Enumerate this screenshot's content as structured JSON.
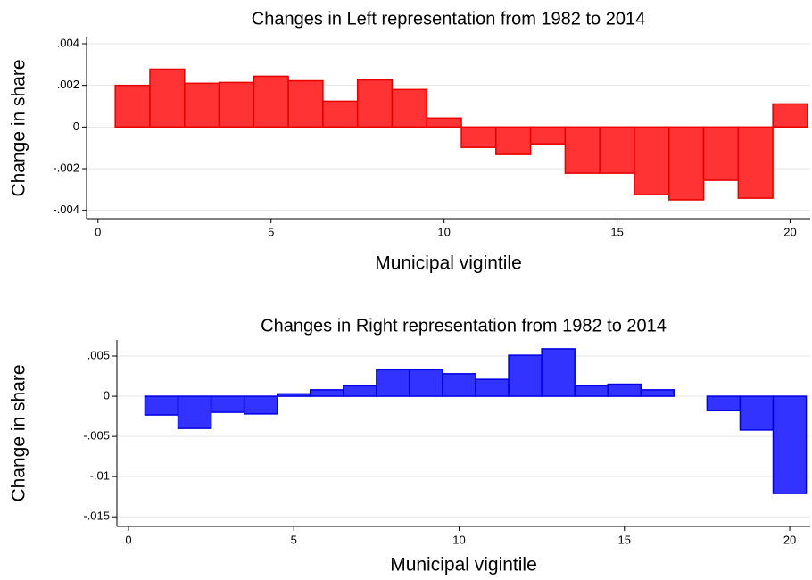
{
  "chart_data": [
    {
      "type": "bar",
      "title": "Changes in Left representation from 1982 to 2014",
      "x_label": "Municipal vigintile",
      "y_label": "Change in share",
      "x": [
        1,
        2,
        3,
        4,
        5,
        6,
        7,
        8,
        9,
        10,
        11,
        12,
        13,
        14,
        15,
        16,
        17,
        18,
        19,
        20
      ],
      "values": [
        0.002,
        0.00278,
        0.0021,
        0.00214,
        0.00244,
        0.00222,
        0.00124,
        0.00226,
        0.0018,
        0.00043,
        -0.00098,
        -0.00132,
        -0.00081,
        -0.00222,
        -0.00222,
        -0.00325,
        -0.0035,
        -0.00256,
        -0.00342,
        0.00111
      ],
      "color": "#ff3333",
      "edge_color": "#e60000",
      "xlim": [
        -0.33,
        20.58
      ],
      "xticks": [
        0,
        5,
        10,
        15,
        20
      ],
      "ylim": [
        -0.0044,
        0.0043
      ],
      "yticks": [
        {
          "value": 0.004,
          "label": ".004"
        },
        {
          "value": 0.002,
          "label": ".002"
        },
        0,
        {
          "value": -0.002,
          "label": "-.002"
        },
        {
          "value": -0.004,
          "label": "-.004"
        }
      ],
      "grid": true
    },
    {
      "type": "bar",
      "title": "Changes in Right representation from 1982 to 2014",
      "x_label": "Municipal vigintile",
      "y_label": "Change in share",
      "x": [
        1,
        2,
        3,
        4,
        5,
        6,
        7,
        8,
        9,
        10,
        11,
        12,
        13,
        14,
        15,
        16,
        17,
        18,
        19,
        20
      ],
      "values": [
        -0.00233,
        -0.004,
        -0.002,
        -0.0022,
        0.0003,
        0.0008,
        0.0013,
        0.0033,
        0.0033,
        0.0028,
        0.0021,
        0.0051,
        0.0059,
        0.0013,
        0.0015,
        0.0008,
        0,
        -0.0018,
        -0.0042,
        -0.0121
      ],
      "color": "#3333ff",
      "edge_color": "#0000e0",
      "xlim": [
        -0.35,
        20.62
      ],
      "xticks": [
        0,
        5,
        10,
        15,
        20
      ],
      "ylim": [
        -0.0162,
        0.007
      ],
      "yticks": [
        {
          "value": 0.005,
          "label": ".005"
        },
        0,
        {
          "value": -0.005,
          "label": "-.005"
        },
        {
          "value": -0.01,
          "label": "-.01"
        },
        {
          "value": -0.015,
          "label": "-.015"
        }
      ],
      "grid": true
    }
  ]
}
